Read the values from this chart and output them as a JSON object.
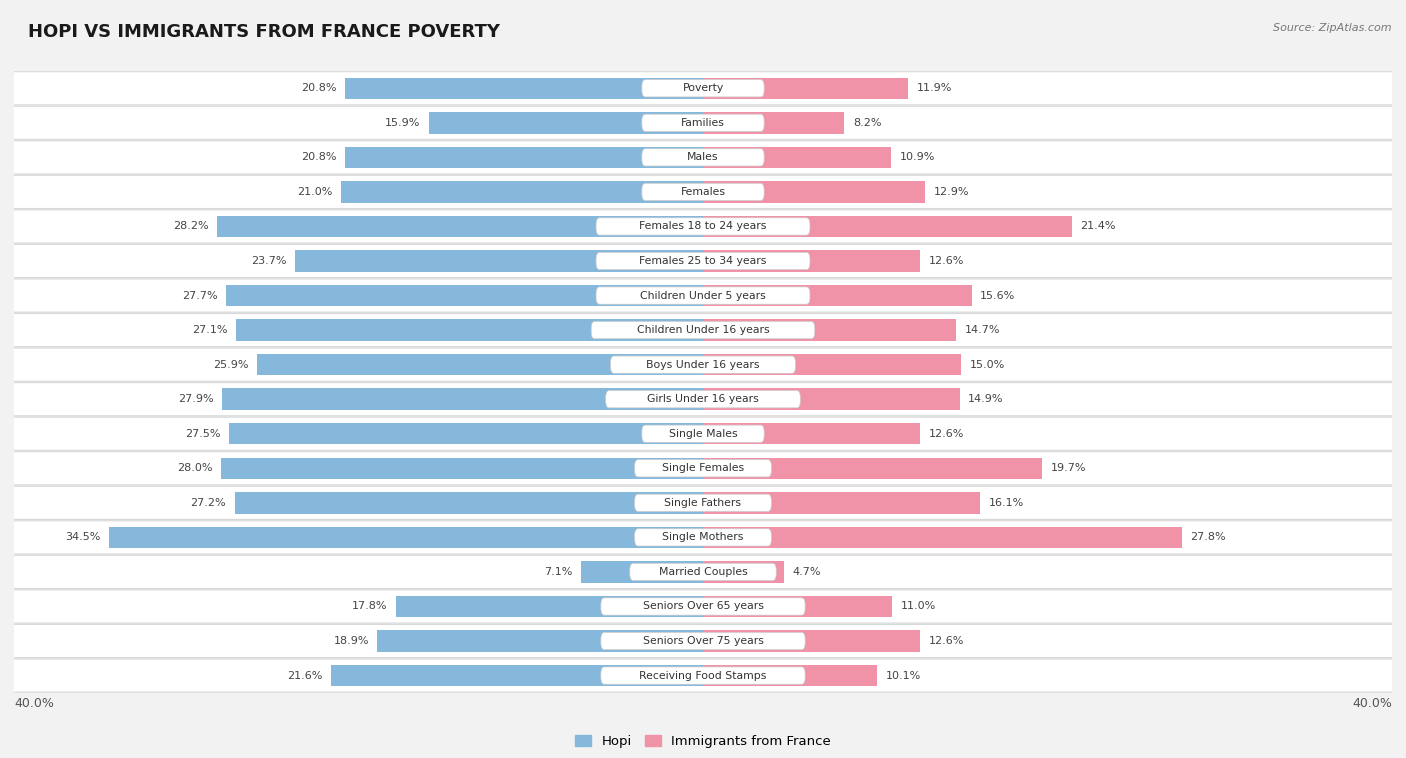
{
  "title": "HOPI VS IMMIGRANTS FROM FRANCE POVERTY",
  "source": "Source: ZipAtlas.com",
  "categories": [
    "Poverty",
    "Families",
    "Males",
    "Females",
    "Females 18 to 24 years",
    "Females 25 to 34 years",
    "Children Under 5 years",
    "Children Under 16 years",
    "Boys Under 16 years",
    "Girls Under 16 years",
    "Single Males",
    "Single Females",
    "Single Fathers",
    "Single Mothers",
    "Married Couples",
    "Seniors Over 65 years",
    "Seniors Over 75 years",
    "Receiving Food Stamps"
  ],
  "hopi_values": [
    20.8,
    15.9,
    20.8,
    21.0,
    28.2,
    23.7,
    27.7,
    27.1,
    25.9,
    27.9,
    27.5,
    28.0,
    27.2,
    34.5,
    7.1,
    17.8,
    18.9,
    21.6
  ],
  "france_values": [
    11.9,
    8.2,
    10.9,
    12.9,
    21.4,
    12.6,
    15.6,
    14.7,
    15.0,
    14.9,
    12.6,
    19.7,
    16.1,
    27.8,
    4.7,
    11.0,
    12.6,
    10.1
  ],
  "hopi_color": "#85b8db",
  "france_color": "#f093a8",
  "bg_color": "#f2f2f2",
  "bar_bg": "#ffffff",
  "axis_limit": 40.0,
  "legend_hopi": "Hopi",
  "legend_france": "Immigrants from France"
}
